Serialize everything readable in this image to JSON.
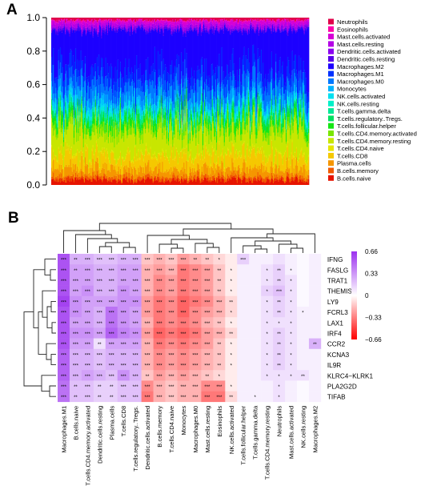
{
  "panels": {
    "a_label": "A",
    "b_label": "B"
  },
  "chart_data": [
    {
      "type": "area",
      "panel": "A",
      "stacking": "proportion (stacked 100% per sample)",
      "ylim": [
        0,
        1
      ],
      "yticks": [
        "0.0",
        "0.2",
        "0.4",
        "0.6",
        "0.8",
        "1.0"
      ],
      "legend_position": "right",
      "legend": [
        {
          "name": "Neutrophils",
          "color": "#e0004a"
        },
        {
          "name": "Eosinophils",
          "color": "#ff00a8"
        },
        {
          "name": "Mast.cells.activated",
          "color": "#d600d6"
        },
        {
          "name": "Mast.cells.resting",
          "color": "#b400e6"
        },
        {
          "name": "Dendritic.cells.activated",
          "color": "#8c00f0"
        },
        {
          "name": "Dendritic.cells.resting",
          "color": "#5a00e8"
        },
        {
          "name": "Macrophages.M2",
          "color": "#1c00ff"
        },
        {
          "name": "Macrophages.M1",
          "color": "#0030ff"
        },
        {
          "name": "Macrophages.M0",
          "color": "#0078ff"
        },
        {
          "name": "Monocytes",
          "color": "#00b4ff"
        },
        {
          "name": "NK.cells.activated",
          "color": "#00e0f0"
        },
        {
          "name": "NK.cells.resting",
          "color": "#00f0c8"
        },
        {
          "name": "T.cells.gamma.delta",
          "color": "#00e896"
        },
        {
          "name": "T.cells.regulatory..Tregs.",
          "color": "#00e060"
        },
        {
          "name": "T.cells.follicular.helper",
          "color": "#14e614"
        },
        {
          "name": "T.cells.CD4.memory.activated",
          "color": "#7ae600"
        },
        {
          "name": "T.cells.CD4.memory.resting",
          "color": "#c8e600"
        },
        {
          "name": "T.cells.CD4.naive",
          "color": "#e6e600"
        },
        {
          "name": "T.cells.CD8",
          "color": "#f5c800"
        },
        {
          "name": "Plasma.cells",
          "color": "#f59600"
        },
        {
          "name": "B.cells.memory",
          "color": "#f05a00"
        },
        {
          "name": "B.cells.naive",
          "color": "#e61400"
        }
      ],
      "band_bottom_order": [
        "B.cells.naive",
        "B.cells.memory",
        "Plasma.cells",
        "T.cells.CD8",
        "T.cells.CD4.naive",
        "T.cells.CD4.memory.resting",
        "T.cells.CD4.memory.activated",
        "T.cells.follicular.helper",
        "T.cells.regulatory..Tregs.",
        "T.cells.gamma.delta",
        "NK.cells.resting",
        "NK.cells.activated",
        "Monocytes",
        "Macrophages.M0",
        "Macrophages.M1",
        "Macrophages.M2",
        "Dendritic.cells.resting",
        "Dendritic.cells.activated",
        "Mast.cells.resting",
        "Mast.cells.activated",
        "Eosinophils",
        "Neutrophils"
      ],
      "approx_mean_fraction": [
        0.03,
        0.02,
        0.05,
        0.08,
        0.01,
        0.14,
        0.04,
        0.04,
        0.03,
        0.005,
        0.02,
        0.03,
        0.04,
        0.09,
        0.09,
        0.24,
        0.01,
        0.01,
        0.02,
        0.02,
        0.005,
        0.015
      ],
      "n_samples_drawn": 300
    },
    {
      "type": "heatmap",
      "panel": "B",
      "title": "",
      "columns": [
        "Macrophages.M1",
        "B.cells.naive",
        "T.cells.CD4.memory.activated",
        "Dendritic.cells.resting",
        "Plasma.cells",
        "T.cells.CD8",
        "T.cells.regulatory..Tregs.",
        "Dendritic.cells.activated",
        "B.cells.memory",
        "T.cells.CD4.naive",
        "Monocytes",
        "Macrophages.M0",
        "Mast.cells.resting",
        "Eosinophils",
        "NK.cells.activated",
        "T.cells.follicular.helper",
        "T.cells.gamma.delta",
        "T.cells.CD4.memory.resting",
        "Neutrophils",
        "Mast.cells.activated",
        "NK.cells.resting",
        "Macrophages.M2"
      ],
      "rows": [
        "IFNG",
        "FASLG",
        "TRAT1",
        "THEMIS",
        "LY9",
        "FCRL3",
        "LAX1",
        "IRF4",
        "CCR2",
        "KCNA3",
        "IL9R",
        "KLRC4−KLRK1",
        "PLA2G2D",
        "TIFAB"
      ],
      "color_scale": {
        "min": -0.66,
        "max": 0.66,
        "ticks": [
          "0.66",
          "0.33",
          "0",
          "−0.33",
          "−0.66"
        ],
        "high_color": "#9b30ef",
        "mid_color": "#ffffff",
        "low_color": "#ff0000"
      },
      "values": [
        [
          0.55,
          0.25,
          0.25,
          0.2,
          0.2,
          0.25,
          0.25,
          -0.15,
          -0.2,
          -0.15,
          -0.25,
          -0.2,
          -0.15,
          -0.1,
          -0.05,
          0.15,
          0.05,
          0.05,
          0.1,
          0.05,
          0.02,
          0.05
        ],
        [
          0.55,
          0.3,
          0.3,
          0.25,
          0.25,
          0.3,
          0.3,
          -0.2,
          -0.25,
          -0.2,
          -0.35,
          -0.3,
          -0.25,
          -0.15,
          -0.05,
          0.05,
          0.05,
          0.1,
          0.15,
          0.05,
          0.02,
          0.05
        ],
        [
          0.55,
          0.3,
          0.3,
          0.25,
          0.25,
          0.3,
          0.3,
          -0.2,
          -0.3,
          -0.25,
          -0.35,
          -0.3,
          -0.25,
          -0.15,
          -0.05,
          0.05,
          0.05,
          0.1,
          0.15,
          0.1,
          0.02,
          0.05
        ],
        [
          0.55,
          0.3,
          0.35,
          0.25,
          0.25,
          0.35,
          0.3,
          -0.2,
          -0.3,
          -0.25,
          -0.35,
          -0.3,
          -0.25,
          -0.15,
          -0.05,
          0.05,
          0.05,
          0.15,
          0.2,
          0.1,
          0.02,
          0.05
        ],
        [
          0.6,
          0.35,
          0.3,
          0.3,
          0.3,
          0.35,
          0.35,
          -0.25,
          -0.35,
          -0.3,
          -0.4,
          -0.35,
          -0.3,
          -0.2,
          -0.1,
          0.05,
          0.05,
          0.1,
          0.15,
          0.1,
          0.02,
          0.05
        ],
        [
          0.55,
          0.35,
          0.3,
          0.25,
          0.45,
          0.35,
          0.3,
          -0.25,
          -0.35,
          -0.3,
          -0.4,
          -0.3,
          -0.25,
          -0.2,
          -0.1,
          0.05,
          0.05,
          0.1,
          0.15,
          0.1,
          0.05,
          0.05
        ],
        [
          0.55,
          0.3,
          0.3,
          0.25,
          0.45,
          0.35,
          0.3,
          -0.2,
          -0.35,
          -0.3,
          -0.35,
          -0.3,
          -0.2,
          -0.15,
          -0.05,
          0.05,
          0.05,
          0.1,
          0.1,
          0.1,
          0.05,
          0.05
        ],
        [
          0.55,
          0.35,
          0.35,
          0.3,
          0.5,
          0.4,
          0.35,
          -0.25,
          -0.4,
          -0.35,
          -0.4,
          -0.35,
          -0.25,
          -0.2,
          -0.1,
          0.05,
          0.05,
          0.1,
          0.15,
          0.1,
          0.05,
          0.05
        ],
        [
          0.55,
          0.3,
          0.3,
          0.1,
          0.3,
          0.3,
          0.3,
          -0.2,
          -0.35,
          -0.3,
          -0.35,
          -0.3,
          -0.25,
          -0.15,
          -0.05,
          0.05,
          0.05,
          0.1,
          0.15,
          0.1,
          0.05,
          0.25
        ],
        [
          0.5,
          0.25,
          0.25,
          0.2,
          0.25,
          0.25,
          0.25,
          -0.2,
          -0.3,
          -0.25,
          -0.3,
          -0.25,
          -0.2,
          -0.15,
          -0.05,
          0.05,
          0.05,
          0.1,
          0.15,
          0.1,
          0.05,
          0.05
        ],
        [
          0.5,
          0.25,
          0.25,
          0.2,
          0.25,
          0.25,
          0.25,
          -0.2,
          -0.3,
          -0.25,
          -0.3,
          -0.25,
          -0.2,
          -0.15,
          -0.05,
          0.05,
          0.05,
          0.1,
          0.15,
          0.1,
          0.05,
          0.05
        ],
        [
          0.5,
          0.25,
          0.3,
          0.25,
          0.2,
          0.35,
          0.25,
          -0.15,
          -0.25,
          -0.2,
          -0.25,
          -0.2,
          -0.15,
          -0.1,
          -0.05,
          0.05,
          0.05,
          0.1,
          0.1,
          0.1,
          0.1,
          0.05
        ],
        [
          0.45,
          0.2,
          0.2,
          0.15,
          0.15,
          0.2,
          0.2,
          -0.3,
          -0.2,
          -0.15,
          -0.2,
          -0.2,
          -0.3,
          -0.3,
          -0.05,
          0.05,
          0.05,
          0.05,
          0.1,
          0.05,
          0.02,
          0.05
        ],
        [
          0.45,
          0.2,
          0.2,
          0.15,
          0.15,
          0.2,
          0.2,
          -0.35,
          -0.2,
          -0.15,
          -0.2,
          -0.2,
          -0.35,
          -0.35,
          -0.1,
          0.05,
          0.05,
          0.05,
          0.1,
          0.05,
          0.02,
          0.05
        ]
      ],
      "stars": [
        [
          "***",
          "**",
          "***",
          "***",
          "***",
          "***",
          "***",
          "***",
          "***",
          "***",
          "***",
          "**",
          "**",
          "*",
          "",
          "***",
          "",
          "",
          "",
          "",
          "",
          ""
        ],
        [
          "***",
          "**",
          "***",
          "***",
          "***",
          "***",
          "***",
          "***",
          "***",
          "***",
          "***",
          "***",
          "***",
          "**",
          "*",
          "",
          "",
          "*",
          "**",
          "*",
          "",
          ""
        ],
        [
          "***",
          "***",
          "***",
          "***",
          "***",
          "***",
          "***",
          "***",
          "***",
          "***",
          "***",
          "***",
          "***",
          "**",
          "*",
          "",
          "",
          "*",
          "**",
          "*",
          "",
          ""
        ],
        [
          "***",
          "***",
          "***",
          "***",
          "***",
          "***",
          "***",
          "***",
          "***",
          "***",
          "***",
          "***",
          "***",
          "**",
          "*",
          "",
          "",
          "*",
          "***",
          "*",
          "",
          ""
        ],
        [
          "***",
          "***",
          "***",
          "***",
          "***",
          "***",
          "***",
          "***",
          "***",
          "***",
          "***",
          "***",
          "***",
          "***",
          "**",
          "",
          "",
          "*",
          "**",
          "*",
          "",
          ""
        ],
        [
          "***",
          "***",
          "***",
          "***",
          "***",
          "***",
          "***",
          "***",
          "***",
          "***",
          "***",
          "***",
          "***",
          "***",
          "*",
          "",
          "",
          "*",
          "**",
          "*",
          "*",
          ""
        ],
        [
          "***",
          "***",
          "***",
          "***",
          "***",
          "***",
          "***",
          "***",
          "***",
          "***",
          "***",
          "***",
          "***",
          "**",
          "*",
          "",
          "",
          "*",
          "*",
          "*",
          "",
          ""
        ],
        [
          "***",
          "***",
          "***",
          "***",
          "***",
          "***",
          "***",
          "***",
          "***",
          "***",
          "***",
          "***",
          "***",
          "***",
          "**",
          "",
          "",
          "*",
          "**",
          "*",
          "",
          ""
        ],
        [
          "***",
          "***",
          "***",
          "**",
          "***",
          "***",
          "***",
          "***",
          "***",
          "***",
          "***",
          "***",
          "***",
          "**",
          "*",
          "",
          "",
          "*",
          "**",
          "*",
          "",
          "**"
        ],
        [
          "***",
          "***",
          "***",
          "***",
          "***",
          "***",
          "***",
          "***",
          "***",
          "***",
          "***",
          "***",
          "***",
          "**",
          "*",
          "",
          "",
          "*",
          "**",
          "*",
          "",
          ""
        ],
        [
          "***",
          "***",
          "***",
          "***",
          "***",
          "***",
          "***",
          "***",
          "***",
          "***",
          "***",
          "***",
          "***",
          "**",
          "*",
          "",
          "",
          "*",
          "**",
          "*",
          "",
          ""
        ],
        [
          "***",
          "***",
          "***",
          "***",
          "***",
          "***",
          "***",
          "**",
          "***",
          "***",
          "***",
          "***",
          "**",
          "*",
          "",
          "",
          "",
          "*",
          "*",
          "*",
          "**",
          ""
        ],
        [
          "***",
          "**",
          "***",
          "**",
          "**",
          "***",
          "***",
          "***",
          "***",
          "***",
          "***",
          "***",
          "***",
          "***",
          "*",
          "",
          "",
          "",
          "*",
          "",
          "",
          ""
        ],
        [
          "***",
          "**",
          "***",
          "**",
          "**",
          "***",
          "***",
          "***",
          "***",
          "***",
          "***",
          "***",
          "***",
          "***",
          "**",
          "",
          "*",
          "",
          "*",
          "",
          "",
          ""
        ]
      ]
    }
  ]
}
